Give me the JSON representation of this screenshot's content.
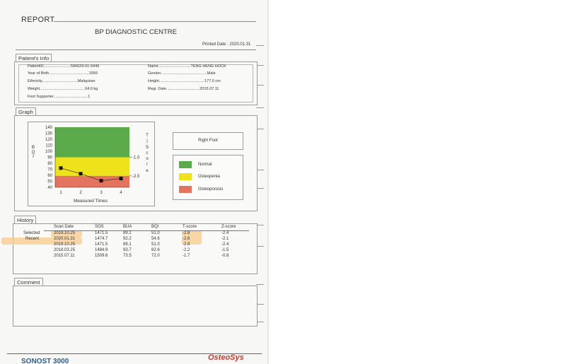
{
  "report": {
    "title": "REPORT",
    "centre": "BP DIAGNOSTIC CENTRE",
    "printed_date": "Printed Date : 2020.01.31"
  },
  "patient_info": {
    "tab": "Patient's Info",
    "rows": [
      {
        "left": "PatientID.........................590629-01-5449",
        "right": "Name..............................TENG HENG HOCK"
      },
      {
        "left": "Year of Birth.....................................1959",
        "right": "Gender...........................................Male"
      },
      {
        "left": "Ethnicity.................................Malaysian",
        "right": "Height..........................................177.0 cm"
      },
      {
        "left": "Weight..........................................64.0 kg",
        "right": "Regi. Date...............................2015.07.11"
      },
      {
        "left": "Foot Supporter................................1",
        "right": ""
      }
    ]
  },
  "graph": {
    "tab": "Graph",
    "bqi_label": [
      "B",
      "Q",
      "I"
    ],
    "tscore_label": [
      "T",
      "|",
      "S",
      "c",
      "o",
      "r",
      "e"
    ],
    "right_foot": "Right Foot",
    "legend": [
      {
        "label": "Normal",
        "color": "#5cab4a"
      },
      {
        "label": "Osteopenia",
        "color": "#eee21a"
      },
      {
        "label": "Osteoporosis",
        "color": "#e4745d"
      }
    ]
  },
  "chart_data": {
    "type": "line",
    "xlabel": "Measured Times",
    "ylabel": "BQI",
    "x": [
      1,
      2,
      3,
      4
    ],
    "ylim": [
      40,
      140
    ],
    "y_ticks": [
      "140",
      "130",
      "120",
      "110",
      "100",
      "90",
      "80",
      "70",
      "60",
      "50",
      "40"
    ],
    "x_ticks": [
      "1",
      "2",
      "3",
      "4"
    ],
    "series": [
      {
        "values": [
          72.0,
          62.6,
          51.0,
          54.6
        ]
      }
    ],
    "bands": [
      {
        "name": "Normal",
        "from": 90,
        "to": 140,
        "color": "#5cab4a"
      },
      {
        "name": "Osteopenia",
        "from": 59,
        "to": 90,
        "color": "#eee21a"
      },
      {
        "name": "Osteoporosis",
        "from": 40,
        "to": 59,
        "color": "#e4745d"
      }
    ],
    "tscore_marks": [
      {
        "label": "-1.0",
        "value": 90
      },
      {
        "label": "-2.5",
        "value": 59
      }
    ]
  },
  "history": {
    "tab": "History",
    "headers": [
      "Scan Date",
      "SOS",
      "BUA",
      "BQI",
      "T-score",
      "Z-score"
    ],
    "rows": [
      {
        "tag": "Selected",
        "cells": [
          "2019.10.25",
          "1471.5",
          "89.1",
          "51.0",
          "-2.8",
          "-2.4"
        ]
      },
      {
        "tag": "Recent",
        "cells": [
          "2020.01.31",
          "1474.7",
          "92.2",
          "54.6",
          "-2.6",
          "-2.1"
        ]
      },
      {
        "tag": "",
        "cells": [
          "2019.10.25",
          "1471.5",
          "89.1",
          "51.0",
          "-2.8",
          "-2.4"
        ]
      },
      {
        "tag": "",
        "cells": [
          "2018.03.25",
          "1484.9",
          "93.7",
          "62.6",
          "-2.2",
          "-1.5"
        ]
      },
      {
        "tag": "",
        "cells": [
          "2015.07.11",
          "1509.6",
          "73.5",
          "72.0",
          "-1.7",
          "-0.8"
        ]
      }
    ]
  },
  "comment": {
    "tab": "Comment"
  },
  "footer": {
    "product": "SONOST 3000",
    "brand": "OsteoSys"
  }
}
